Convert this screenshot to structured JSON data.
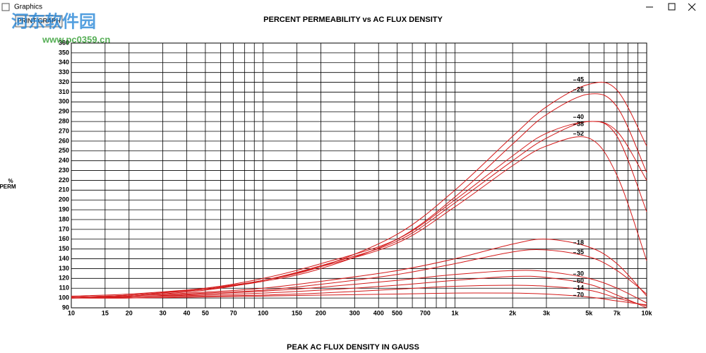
{
  "window": {
    "title": "Graphics",
    "button": "PRINT GRAPH"
  },
  "watermark": [
    "河东软件园",
    "www.pc0359.cn"
  ],
  "chart_data": {
    "type": "line",
    "title": "PERCENT PERMEABILITY vs AC FLUX DENSITY",
    "x_label": "PEAK AC FLUX DENSITY IN GAUSS",
    "y_label": [
      "%",
      "PERM"
    ],
    "x_scale": "log",
    "grid": true,
    "color": "#d41a1a",
    "xlim": [
      10,
      10000
    ],
    "xticks": [
      10,
      15,
      20,
      30,
      40,
      50,
      70,
      100,
      150,
      200,
      300,
      400,
      500,
      700,
      {
        "value": 1000,
        "label": "1k"
      },
      {
        "value": 2000,
        "label": "2k"
      },
      {
        "value": 3000,
        "label": "3k"
      },
      {
        "value": 5000,
        "label": "5k"
      },
      {
        "value": 7000,
        "label": "7k"
      },
      {
        "value": 10000,
        "label": "10k"
      }
    ],
    "xminor": [
      60,
      80,
      90,
      600,
      800,
      900,
      6000,
      8000,
      9000
    ],
    "ylim": [
      90,
      360
    ],
    "yticks": [
      90,
      100,
      110,
      120,
      130,
      140,
      150,
      160,
      170,
      180,
      190,
      200,
      210,
      220,
      230,
      240,
      250,
      260,
      270,
      280,
      290,
      300,
      310,
      320,
      330,
      340,
      350,
      360
    ],
    "x": [
      10,
      20,
      50,
      100,
      200,
      500,
      1000,
      2000,
      3000,
      5000,
      7000,
      10000
    ],
    "series": [
      {
        "name": "45",
        "values": [
          102,
          104,
          110,
          118,
          132,
          165,
          210,
          265,
          295,
          318,
          312,
          255
        ]
      },
      {
        "name": "26",
        "values": [
          101,
          103,
          109,
          117,
          130,
          160,
          203,
          257,
          287,
          308,
          295,
          228
        ]
      },
      {
        "name": "40",
        "values": [
          101,
          103,
          110,
          120,
          135,
          160,
          200,
          245,
          268,
          280,
          270,
          220
        ]
      },
      {
        "name": "38",
        "values": [
          101,
          103,
          109,
          118,
          133,
          158,
          197,
          240,
          263,
          280,
          265,
          188
        ]
      },
      {
        "name": "52",
        "values": [
          100,
          102,
          108,
          118,
          132,
          156,
          193,
          235,
          255,
          263,
          225,
          138
        ]
      },
      {
        "name": "18",
        "values": [
          100,
          102,
          106,
          110,
          117,
          128,
          140,
          155,
          160,
          152,
          135,
          102
        ]
      },
      {
        "name": "35",
        "values": [
          100,
          101,
          105,
          108,
          114,
          124,
          135,
          147,
          149,
          142,
          128,
          104
        ]
      },
      {
        "name": "30",
        "values": [
          100,
          101,
          104,
          107,
          111,
          118,
          124,
          128,
          127,
          120,
          110,
          95
        ]
      },
      {
        "name": "60",
        "values": [
          100,
          101,
          103,
          105,
          108,
          113,
          118,
          122,
          121,
          114,
          103,
          90
        ]
      },
      {
        "name": "14",
        "values": [
          100,
          100,
          102,
          103,
          105,
          109,
          112,
          113,
          112,
          108,
          100,
          92
        ]
      },
      {
        "name": "70",
        "values": [
          100,
          100,
          101,
          102,
          103,
          104,
          105,
          105,
          104,
          101,
          97,
          93
        ]
      }
    ]
  }
}
